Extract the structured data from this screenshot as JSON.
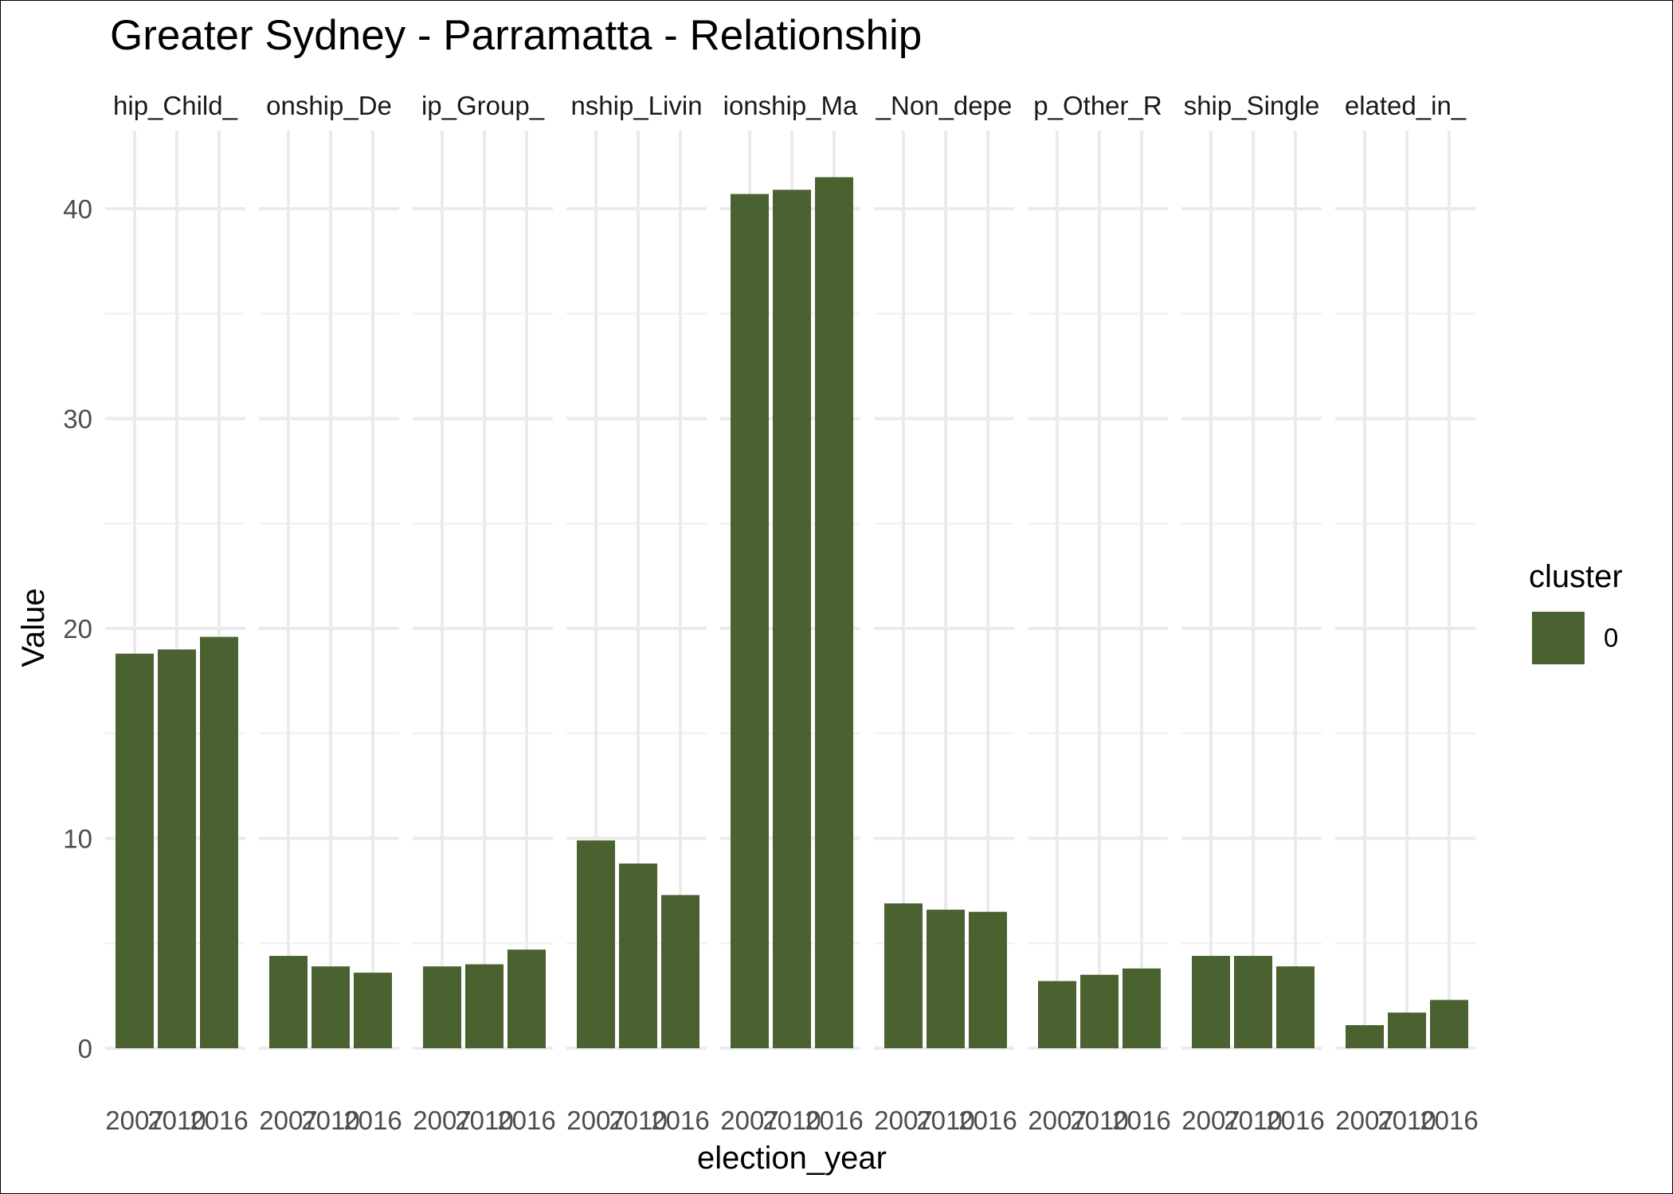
{
  "chart_data": {
    "type": "bar",
    "title": "Greater Sydney - Parramatta - Relationship",
    "xlabel": "election_year",
    "ylabel": "Value",
    "ylim": [
      0,
      43
    ],
    "y_ticks": [
      0,
      10,
      20,
      30,
      40
    ],
    "x_categories": [
      "2007",
      "2010",
      "2016"
    ],
    "facet_labels": [
      "hip_Child_",
      "onship_De",
      "ip_Group_",
      "nship_Livin",
      "ionship_Ma",
      "_Non_depe",
      "p_Other_R",
      "ship_Single",
      "elated_in_"
    ],
    "facets": [
      {
        "values": [
          18.8,
          19.0,
          19.6
        ]
      },
      {
        "values": [
          4.4,
          3.9,
          3.6
        ]
      },
      {
        "values": [
          3.9,
          4.0,
          4.7
        ]
      },
      {
        "values": [
          9.9,
          8.8,
          7.3
        ]
      },
      {
        "values": [
          40.7,
          40.9,
          41.5
        ]
      },
      {
        "values": [
          6.9,
          6.6,
          6.5
        ]
      },
      {
        "values": [
          3.2,
          3.5,
          3.8
        ]
      },
      {
        "values": [
          4.4,
          4.4,
          3.9
        ]
      },
      {
        "values": [
          1.1,
          1.7,
          2.3
        ]
      }
    ],
    "legend": {
      "title": "cluster",
      "entries": [
        {
          "label": "0",
          "color": "#4a6130"
        }
      ]
    },
    "bar_color": "#4a6130",
    "grid": true,
    "legend_position": "right"
  }
}
